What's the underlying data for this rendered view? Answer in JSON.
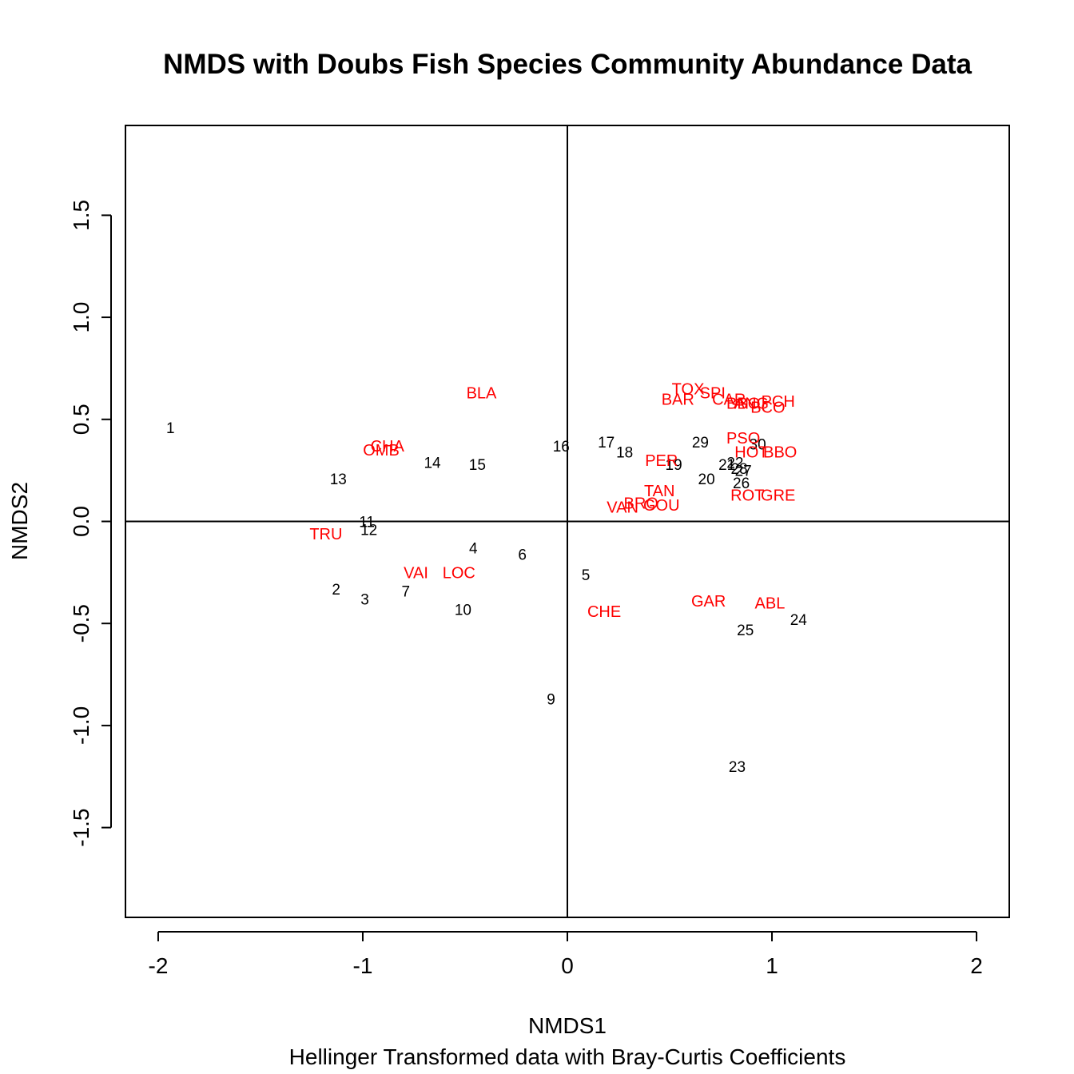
{
  "chart_data": {
    "type": "scatter",
    "title": "NMDS with Doubs Fish Species Community Abundance Data",
    "xlabel": "NMDS1",
    "subtitle": "Hellinger Transformed data with Bray-Curtis Coefficients",
    "ylabel": "NMDS2",
    "xlim": [
      -2.16,
      2.16
    ],
    "ylim": [
      -1.94,
      1.94
    ],
    "x_ticks": [
      "-2",
      "-1",
      "0",
      "1",
      "2"
    ],
    "y_ticks": [
      "-1.5",
      "-1.0",
      "-0.5",
      "0.0",
      "0.5",
      "1.0",
      "1.5"
    ],
    "reference_lines": {
      "x": 0,
      "y": 0
    },
    "colors": {
      "sites": "#000000",
      "species": "#ff0000"
    },
    "series": [
      {
        "kind": "sites",
        "points": [
          {
            "label": "1",
            "x": -1.94,
            "y": 0.46
          },
          {
            "label": "2",
            "x": -1.13,
            "y": -0.33
          },
          {
            "label": "3",
            "x": -0.99,
            "y": -0.38
          },
          {
            "label": "4",
            "x": -0.46,
            "y": -0.13
          },
          {
            "label": "5",
            "x": 0.09,
            "y": -0.26
          },
          {
            "label": "6",
            "x": -0.22,
            "y": -0.16
          },
          {
            "label": "7",
            "x": -0.79,
            "y": -0.34
          },
          {
            "label": "9",
            "x": -0.08,
            "y": -0.87
          },
          {
            "label": "10",
            "x": -0.51,
            "y": -0.43
          },
          {
            "label": "11",
            "x": -0.98,
            "y": 0.0
          },
          {
            "label": "12",
            "x": -0.97,
            "y": -0.04
          },
          {
            "label": "13",
            "x": -1.12,
            "y": 0.21
          },
          {
            "label": "14",
            "x": -0.66,
            "y": 0.29
          },
          {
            "label": "15",
            "x": -0.44,
            "y": 0.28
          },
          {
            "label": "16",
            "x": -0.03,
            "y": 0.37
          },
          {
            "label": "17",
            "x": 0.19,
            "y": 0.39
          },
          {
            "label": "18",
            "x": 0.28,
            "y": 0.34
          },
          {
            "label": "19",
            "x": 0.52,
            "y": 0.28
          },
          {
            "label": "20",
            "x": 0.68,
            "y": 0.21
          },
          {
            "label": "21",
            "x": 0.78,
            "y": 0.28
          },
          {
            "label": "22",
            "x": 0.82,
            "y": 0.29
          },
          {
            "label": "23",
            "x": 0.83,
            "y": -1.2
          },
          {
            "label": "24",
            "x": 1.13,
            "y": -0.48
          },
          {
            "label": "25",
            "x": 0.87,
            "y": -0.53
          },
          {
            "label": "26",
            "x": 0.85,
            "y": 0.19
          },
          {
            "label": "27",
            "x": 0.86,
            "y": 0.25
          },
          {
            "label": "28",
            "x": 0.84,
            "y": 0.26
          },
          {
            "label": "29",
            "x": 0.65,
            "y": 0.39
          },
          {
            "label": "30",
            "x": 0.93,
            "y": 0.38
          }
        ]
      },
      {
        "kind": "species",
        "points": [
          {
            "label": "CHA",
            "x": -0.88,
            "y": 0.37
          },
          {
            "label": "OMB",
            "x": -0.91,
            "y": 0.35
          },
          {
            "label": "TRU",
            "x": -1.18,
            "y": -0.06
          },
          {
            "label": "VAI",
            "x": -0.74,
            "y": -0.25
          },
          {
            "label": "LOC",
            "x": -0.53,
            "y": -0.25
          },
          {
            "label": "BLA",
            "x": -0.42,
            "y": 0.63
          },
          {
            "label": "CHE",
            "x": 0.18,
            "y": -0.44
          },
          {
            "label": "BAR",
            "x": 0.54,
            "y": 0.6
          },
          {
            "label": "TOX",
            "x": 0.59,
            "y": 0.65
          },
          {
            "label": "SPI",
            "x": 0.71,
            "y": 0.63
          },
          {
            "label": "CAR",
            "x": 0.79,
            "y": 0.6
          },
          {
            "label": "BBO",
            "x": 0.86,
            "y": 0.58
          },
          {
            "label": "ANG",
            "x": 0.9,
            "y": 0.58
          },
          {
            "label": "PCH",
            "x": 1.03,
            "y": 0.59
          },
          {
            "label": "BCO",
            "x": 0.98,
            "y": 0.56
          },
          {
            "label": "PSO",
            "x": 0.86,
            "y": 0.41
          },
          {
            "label": "HOT",
            "x": 0.9,
            "y": 0.34
          },
          {
            "label": "BBO",
            "x": 1.04,
            "y": 0.34
          },
          {
            "label": "PER",
            "x": 0.46,
            "y": 0.3
          },
          {
            "label": "TAN",
            "x": 0.45,
            "y": 0.15
          },
          {
            "label": "ROT",
            "x": 0.88,
            "y": 0.13
          },
          {
            "label": "GRE",
            "x": 1.03,
            "y": 0.13
          },
          {
            "label": "VAN",
            "x": 0.27,
            "y": 0.07
          },
          {
            "label": "BRO",
            "x": 0.36,
            "y": 0.09
          },
          {
            "label": "GOU",
            "x": 0.46,
            "y": 0.08
          },
          {
            "label": "GAR",
            "x": 0.69,
            "y": -0.39
          },
          {
            "label": "ABL",
            "x": 0.99,
            "y": -0.4
          }
        ]
      }
    ]
  }
}
